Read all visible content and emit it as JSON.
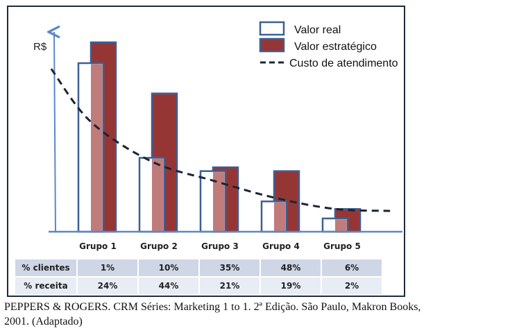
{
  "chart_data": {
    "type": "bar",
    "title": "",
    "xlabel": "",
    "ylabel": "R$",
    "ylim": [
      0,
      100
    ],
    "y_units_note": "relative (no numeric ticks shown)",
    "grid": false,
    "legend_position": "top-right",
    "categories": [
      "Grupo 1",
      "Grupo 2",
      "Grupo 3",
      "Grupo 4",
      "Grupo 5"
    ],
    "series": [
      {
        "name": "Valor real",
        "kind": "bar-outline",
        "values": [
          89,
          39,
          32,
          16,
          7
        ]
      },
      {
        "name": "Valor estratégico",
        "kind": "bar-filled",
        "values": [
          100,
          73,
          34,
          32,
          12
        ]
      },
      {
        "name": "Custo de atendimento",
        "kind": "dashed-line",
        "x": [
          -0.65,
          0,
          1,
          2,
          3,
          4,
          4.9
        ],
        "values": [
          86,
          58,
          37,
          27,
          18,
          12,
          11
        ]
      }
    ],
    "colors": {
      "valor_real_fill": "#ffffff",
      "valor_real_stroke": "#3d5f94",
      "valor_estrategico_fill": "#963634",
      "overlap_fill": "#c07b7b",
      "cost_line": "#1c2433",
      "axis": "#5b87c5"
    }
  },
  "legend": {
    "items": [
      {
        "label": "Valor real"
      },
      {
        "label": "Valor estratégico"
      },
      {
        "label": "Custo de atendimento"
      }
    ]
  },
  "table": {
    "rows": [
      {
        "label": "% clientes",
        "values": [
          "1%",
          "10%",
          "35%",
          "48%",
          "6%"
        ]
      },
      {
        "label": "% receita",
        "values": [
          "24%",
          "44%",
          "21%",
          "19%",
          "2%"
        ]
      }
    ]
  },
  "caption": {
    "line1": "PEPPERS & ROGERS. CRM Séries: Marketing 1 to 1. 2ª Edição. São Paulo, Makron Books,",
    "line2": "2001. (Adaptado)"
  }
}
